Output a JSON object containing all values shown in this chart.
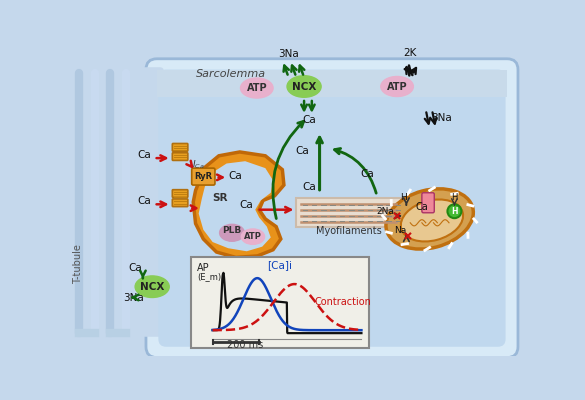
{
  "bg_outer": "#c5d8ec",
  "bg_cell": "#d8eaf7",
  "bg_cell_inner": "#c0d8ee",
  "sarcolemma_text": "Sarcolemma",
  "ttubule_text": "T-tubule",
  "myofilaments_text": "Myofilaments",
  "contraction_text": "Contraction",
  "ap_text": "AP",
  "em_text": "(E_m)",
  "cai_text": "[Ca]i",
  "ms_text": "200 ms",
  "node_colors": {
    "ATP_pink": "#e8b0cc",
    "NCX_green": "#88cc55",
    "PLB_pink": "#cc99bb",
    "ATP_sr": "#e8b0cc"
  },
  "sr_color": "#e8921a",
  "channel_color": "#e8a020",
  "mito_outer_color": "#d4a050",
  "mito_inner_color": "#e8c890",
  "mito_outline": "#c07010",
  "arrow_red": "#cc1111",
  "arrow_green": "#116611",
  "arrow_black": "#111111",
  "inset_bg": "#f0efe8",
  "inset_border": "#888888",
  "line_ap": "#111111",
  "line_cai": "#1144bb",
  "line_contraction": "#cc1111",
  "figsize": [
    5.85,
    4.0
  ],
  "dpi": 100
}
